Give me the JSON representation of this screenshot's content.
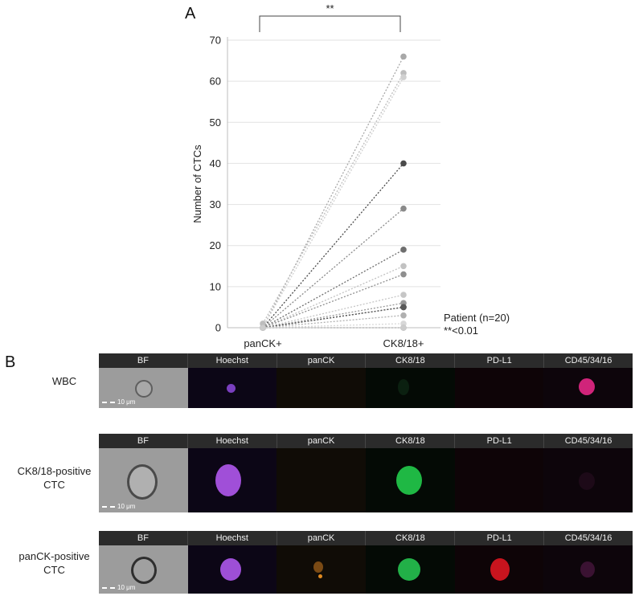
{
  "panel_a": {
    "letter": "A"
  },
  "panel_b": {
    "letter": "B"
  },
  "chart_data": {
    "type": "line",
    "categories": [
      "panCK+",
      "CK8/18+"
    ],
    "ylabel": "Number of CTCs",
    "ylim": [
      0,
      70
    ],
    "yticks": [
      0,
      10,
      20,
      30,
      40,
      50,
      60,
      70
    ],
    "grid": true,
    "significance": "**",
    "note_line1": "Patient (n=20)",
    "note_line2": "**<0.01",
    "pairs": [
      {
        "start": 0,
        "end": 66,
        "color": "#a8a8a8"
      },
      {
        "start": 1,
        "end": 62,
        "color": "#bdbdbd"
      },
      {
        "start": 0,
        "end": 61,
        "color": "#d0d0d0"
      },
      {
        "start": 0,
        "end": 40,
        "color": "#4a4a4a"
      },
      {
        "start": 0,
        "end": 29,
        "color": "#8a8a8a"
      },
      {
        "start": 0,
        "end": 19,
        "color": "#6e6e6e"
      },
      {
        "start": 0,
        "end": 15,
        "color": "#c2c2c2"
      },
      {
        "start": 0,
        "end": 13,
        "color": "#8f8f8f"
      },
      {
        "start": 0,
        "end": 8,
        "color": "#c6c6c6"
      },
      {
        "start": 0,
        "end": 6,
        "color": "#9a9a9a"
      },
      {
        "start": 0,
        "end": 5,
        "color": "#3d3d3d"
      },
      {
        "start": 0,
        "end": 5,
        "color": "#5a5a5a"
      },
      {
        "start": 0,
        "end": 3,
        "color": "#b0b0b0"
      },
      {
        "start": 0,
        "end": 1,
        "color": "#d8d8d8"
      },
      {
        "start": 0,
        "end": 0,
        "color": "#c8c8c8"
      },
      {
        "start": 0,
        "end": 0,
        "color": "#a0a0a0"
      },
      {
        "start": 0,
        "end": 0,
        "color": "#bcbcbc"
      },
      {
        "start": 0,
        "end": 0,
        "color": "#d2d2d2"
      },
      {
        "start": 0,
        "end": 0,
        "color": "#b6b6b6"
      },
      {
        "start": 0,
        "end": 0,
        "color": "#cccccc"
      }
    ]
  },
  "channels": [
    "BF",
    "Hoechst",
    "panCK",
    "CK8/18",
    "PD-L1",
    "CD45/34/16"
  ],
  "scale_bar": "10 μm",
  "rows": [
    {
      "label": "WBC"
    },
    {
      "label_line1": "CK8/18-positive",
      "label_line2": "CTC"
    },
    {
      "label_line1": "panCK-positive",
      "label_line2": "CTC"
    }
  ]
}
